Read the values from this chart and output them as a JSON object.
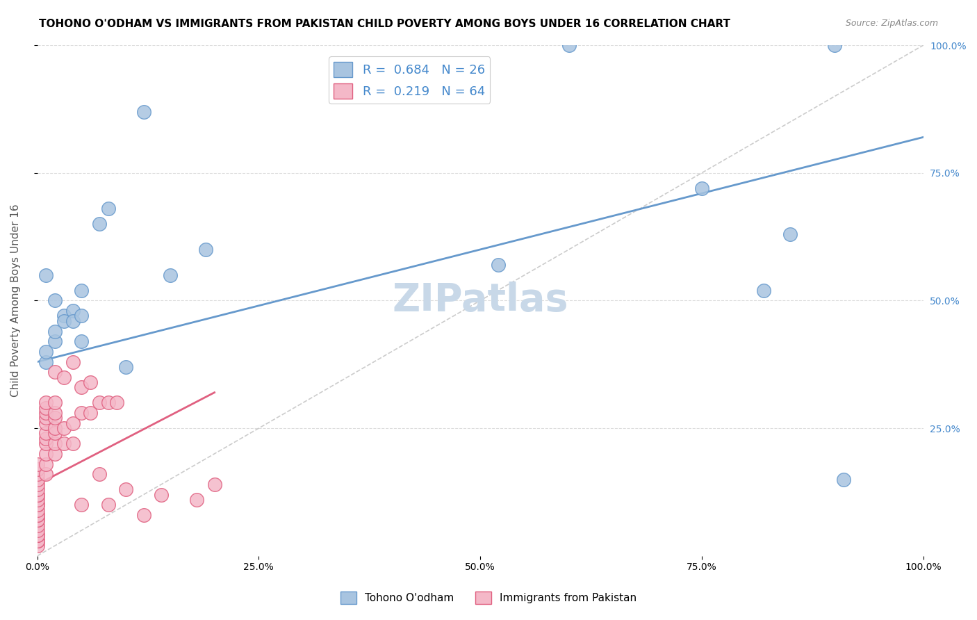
{
  "title": "TOHONO O'ODHAM VS IMMIGRANTS FROM PAKISTAN CHILD POVERTY AMONG BOYS UNDER 16 CORRELATION CHART",
  "source": "Source: ZipAtlas.com",
  "ylabel": "Child Poverty Among Boys Under 16",
  "watermark": "ZIPatlas",
  "series": [
    {
      "name": "Tohono O'odham",
      "color": "#a8c4e0",
      "edge_color": "#6699cc",
      "R": 0.684,
      "N": 26,
      "points_x": [
        0.02,
        0.02,
        0.03,
        0.05,
        0.01,
        0.01,
        0.01,
        0.02,
        0.03,
        0.04,
        0.04,
        0.05,
        0.05,
        0.07,
        0.08,
        0.1,
        0.12,
        0.15,
        0.19,
        0.52,
        0.6,
        0.75,
        0.82,
        0.85,
        0.9,
        0.91
      ],
      "points_y": [
        0.42,
        0.44,
        0.47,
        0.52,
        0.55,
        0.38,
        0.4,
        0.5,
        0.46,
        0.48,
        0.46,
        0.47,
        0.42,
        0.65,
        0.68,
        0.37,
        0.87,
        0.55,
        0.6,
        0.57,
        1.0,
        0.72,
        0.52,
        0.63,
        1.0,
        0.15
      ],
      "trend_x": [
        0.0,
        1.0
      ],
      "trend_y": [
        0.38,
        0.82
      ]
    },
    {
      "name": "Immigrants from Pakistan",
      "color": "#f4b8c8",
      "edge_color": "#e06080",
      "R": 0.219,
      "N": 64,
      "points_x": [
        0.0,
        0.0,
        0.0,
        0.0,
        0.0,
        0.0,
        0.0,
        0.0,
        0.0,
        0.0,
        0.0,
        0.0,
        0.0,
        0.0,
        0.0,
        0.0,
        0.0,
        0.0,
        0.0,
        0.0,
        0.0,
        0.0,
        0.0,
        0.0,
        0.01,
        0.01,
        0.01,
        0.01,
        0.01,
        0.01,
        0.01,
        0.01,
        0.01,
        0.01,
        0.01,
        0.02,
        0.02,
        0.02,
        0.02,
        0.02,
        0.02,
        0.02,
        0.02,
        0.03,
        0.03,
        0.03,
        0.04,
        0.04,
        0.04,
        0.05,
        0.05,
        0.05,
        0.06,
        0.06,
        0.07,
        0.07,
        0.08,
        0.08,
        0.09,
        0.1,
        0.12,
        0.14,
        0.18,
        0.2
      ],
      "points_y": [
        0.02,
        0.03,
        0.03,
        0.03,
        0.04,
        0.04,
        0.05,
        0.06,
        0.07,
        0.07,
        0.08,
        0.08,
        0.09,
        0.1,
        0.1,
        0.11,
        0.12,
        0.12,
        0.13,
        0.14,
        0.15,
        0.16,
        0.17,
        0.18,
        0.16,
        0.18,
        0.2,
        0.22,
        0.23,
        0.24,
        0.26,
        0.27,
        0.28,
        0.29,
        0.3,
        0.2,
        0.22,
        0.24,
        0.25,
        0.27,
        0.28,
        0.3,
        0.36,
        0.22,
        0.25,
        0.35,
        0.22,
        0.26,
        0.38,
        0.28,
        0.33,
        0.1,
        0.28,
        0.34,
        0.3,
        0.16,
        0.3,
        0.1,
        0.3,
        0.13,
        0.08,
        0.12,
        0.11,
        0.14
      ],
      "trend_x": [
        0.0,
        0.2
      ],
      "trend_y": [
        0.14,
        0.32
      ]
    }
  ],
  "diag_line_color": "#cccccc",
  "xlim": [
    0.0,
    1.0
  ],
  "ylim": [
    0.0,
    1.0
  ],
  "xtick_vals": [
    0.0,
    0.25,
    0.5,
    0.75,
    1.0
  ],
  "xtick_labels": [
    "0.0%",
    "25.0%",
    "50.0%",
    "75.0%",
    "100.0%"
  ],
  "ytick_vals": [
    0.25,
    0.5,
    0.75,
    1.0
  ],
  "ytick_labels": [
    "25.0%",
    "50.0%",
    "75.0%",
    "100.0%"
  ],
  "grid_color": "#dddddd",
  "background_color": "#ffffff",
  "title_fontsize": 11,
  "axis_label_fontsize": 11,
  "tick_fontsize": 10,
  "legend_fontsize": 13,
  "watermark_fontsize": 40,
  "watermark_color": "#c8d8e8",
  "source_fontsize": 9,
  "right_ytick_color": "#4488cc"
}
